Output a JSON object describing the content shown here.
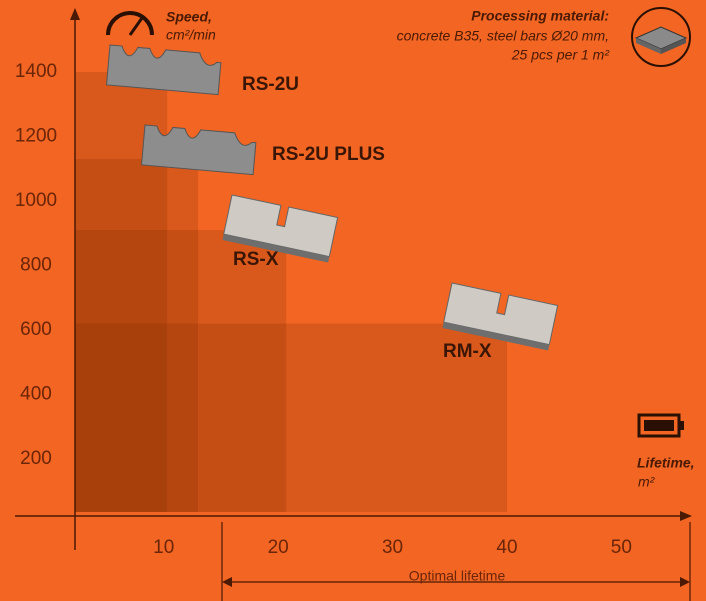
{
  "chart_data": {
    "type": "step-area",
    "y_label": "Speed,",
    "y_unit": "cm²/min",
    "x_label": "Lifetime,",
    "x_unit": "m²",
    "annotation": {
      "title": "Processing material:",
      "lines": [
        "concrete B35, steel bars Ø20 mm,",
        "25 pcs per 1 m²"
      ]
    },
    "range_label": "Optimal lifetime",
    "categories": [
      "RS-2U",
      "RS-2U PLUS",
      "RS-X",
      "RM-X"
    ],
    "x": [
      10.3,
      13,
      20.7,
      40
    ],
    "values": [
      1400,
      1130,
      910,
      620
    ],
    "color": "#7a2a00",
    "xlim": [
      -3,
      56
    ],
    "xticks": [
      10,
      20,
      30,
      40,
      50
    ],
    "ylim": [
      0,
      1600
    ],
    "yticks": [
      200,
      400,
      600,
      800,
      1000,
      1200,
      1400
    ]
  }
}
